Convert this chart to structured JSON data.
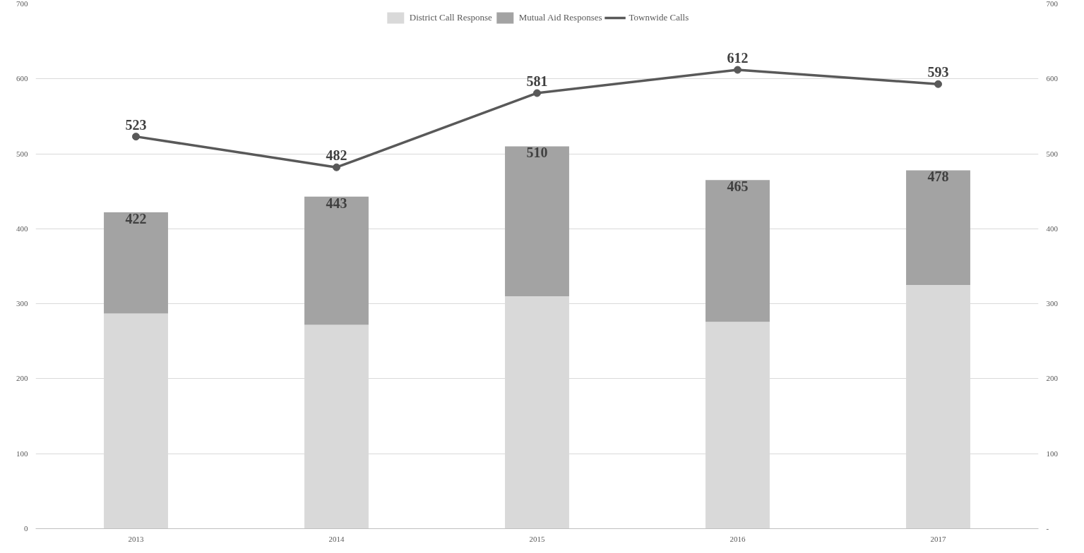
{
  "chart_data": {
    "type": "bar",
    "stacked": true,
    "categories": [
      "2013",
      "2014",
      "2015",
      "2016",
      "2017"
    ],
    "series": [
      {
        "name": "District Call Response",
        "color": "#d9d9d9",
        "values": [
          287,
          272,
          310,
          276,
          325
        ]
      },
      {
        "name": "Mutual Aid Responses",
        "color": "#a3a3a3",
        "values": [
          135,
          171,
          200,
          189,
          153
        ]
      },
      {
        "name": "Townwide Calls",
        "type": "line",
        "color": "#595959",
        "marker": "circle",
        "values": [
          523,
          482,
          581,
          612,
          593
        ],
        "value_labels": [
          "523",
          "482",
          "581",
          "612",
          "593"
        ]
      }
    ],
    "totals": [
      "422",
      "443",
      "510",
      "465",
      "478"
    ],
    "ylim": [
      0,
      700
    ],
    "yticks": [
      0,
      100,
      200,
      300,
      400,
      500,
      600,
      700
    ],
    "y2lim": [
      0,
      700
    ],
    "y2ticks": [
      {
        "value": 0,
        "label": "-"
      },
      100,
      200,
      300,
      400,
      500,
      600,
      700
    ],
    "grid": "y",
    "legend": "top"
  }
}
